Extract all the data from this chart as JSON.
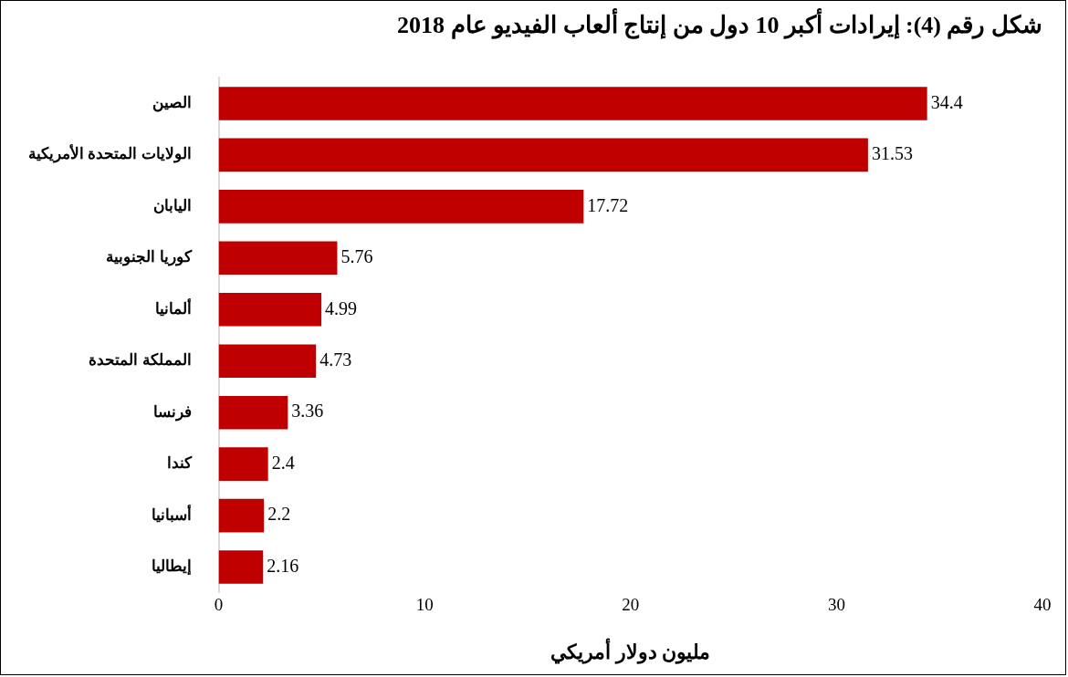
{
  "chart_data": {
    "type": "bar",
    "orientation": "horizontal",
    "title": "شكل رقم (4): إيرادات أكبر 10 دول من إنتاج ألعاب الفيديو عام 2018",
    "xlabel": "مليون دولار أمريكي",
    "categories": [
      "الصين",
      "الولايات المتحدة الأمريكية",
      "اليابان",
      "كوريا الجنوبية",
      "ألمانيا",
      "المملكة المتحدة",
      "فرنسا",
      "كندا",
      "أسبانيا",
      "إيطاليا"
    ],
    "values": [
      34.4,
      31.53,
      17.72,
      5.76,
      4.99,
      4.73,
      3.36,
      2.4,
      2.2,
      2.16
    ],
    "color": "#c00000",
    "xlim": [
      0,
      40
    ],
    "xticks": [
      0,
      10,
      20,
      30,
      40
    ],
    "grid": false,
    "legend": false,
    "data_labels": true
  }
}
